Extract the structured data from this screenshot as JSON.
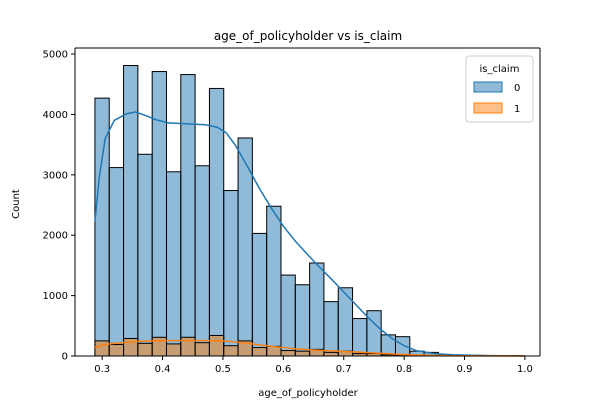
{
  "chart_data": {
    "type": "histogram",
    "title": "age_of_policyholder vs is_claim",
    "xlabel": "age_of_policyholder",
    "ylabel": "Count",
    "xlim": [
      0.255,
      1.025
    ],
    "ylim": [
      0,
      5100
    ],
    "xticks": [
      "0.3",
      "0.4",
      "0.5",
      "0.6",
      "0.7",
      "0.8",
      "0.9",
      "1.0"
    ],
    "xtick_values": [
      0.3,
      0.4,
      0.5,
      0.6,
      0.7,
      0.8,
      0.9,
      1.0
    ],
    "yticks": [
      "0",
      "1000",
      "2000",
      "3000",
      "4000",
      "5000"
    ],
    "ytick_values": [
      0,
      1000,
      2000,
      3000,
      4000,
      5000
    ],
    "bin_edges": [
      0.288,
      0.3117,
      0.3354,
      0.3591,
      0.3828,
      0.4065,
      0.4302,
      0.4539,
      0.4776,
      0.5013,
      0.525,
      0.5487,
      0.5724,
      0.5961,
      0.6198,
      0.6435,
      0.6672,
      0.6909,
      0.7146,
      0.7383,
      0.762,
      0.7857,
      0.8094,
      0.8331,
      0.8568,
      0.8805,
      0.9042,
      0.9279,
      0.9516,
      0.9753,
      0.999
    ],
    "series": [
      {
        "name": "0",
        "color": "#1f77b4",
        "fill": "rgba(31,119,180,0.5)",
        "counts": [
          4270,
          3120,
          4810,
          3340,
          4710,
          3050,
          4660,
          3150,
          4430,
          2740,
          3610,
          2030,
          2480,
          1340,
          1180,
          1540,
          900,
          1130,
          620,
          750,
          350,
          320,
          80,
          60,
          20,
          15,
          10,
          5,
          5,
          3
        ],
        "kde": [
          [
            0.288,
            2220
          ],
          [
            0.295,
            2950
          ],
          [
            0.305,
            3600
          ],
          [
            0.32,
            3900
          ],
          [
            0.34,
            4010
          ],
          [
            0.355,
            4040
          ],
          [
            0.37,
            3990
          ],
          [
            0.39,
            3910
          ],
          [
            0.41,
            3860
          ],
          [
            0.43,
            3850
          ],
          [
            0.45,
            3840
          ],
          [
            0.47,
            3830
          ],
          [
            0.49,
            3790
          ],
          [
            0.505,
            3700
          ],
          [
            0.52,
            3500
          ],
          [
            0.54,
            3150
          ],
          [
            0.56,
            2780
          ],
          [
            0.58,
            2450
          ],
          [
            0.6,
            2150
          ],
          [
            0.62,
            1900
          ],
          [
            0.64,
            1680
          ],
          [
            0.66,
            1470
          ],
          [
            0.68,
            1270
          ],
          [
            0.7,
            1060
          ],
          [
            0.72,
            850
          ],
          [
            0.74,
            640
          ],
          [
            0.76,
            450
          ],
          [
            0.78,
            290
          ],
          [
            0.8,
            170
          ],
          [
            0.82,
            90
          ],
          [
            0.85,
            40
          ],
          [
            0.88,
            20
          ],
          [
            0.92,
            10
          ],
          [
            0.96,
            5
          ],
          [
            0.999,
            3
          ]
        ]
      },
      {
        "name": "1",
        "color": "#ff7f0e",
        "fill": "rgba(255,127,14,0.5)",
        "counts": [
          250,
          190,
          290,
          210,
          310,
          200,
          310,
          220,
          340,
          170,
          250,
          140,
          160,
          90,
          80,
          110,
          60,
          80,
          40,
          40,
          20,
          20,
          5,
          3,
          2,
          1,
          1,
          0,
          0,
          0
        ],
        "kde": [
          [
            0.288,
            140
          ],
          [
            0.3,
            180
          ],
          [
            0.32,
            210
          ],
          [
            0.35,
            235
          ],
          [
            0.38,
            250
          ],
          [
            0.41,
            255
          ],
          [
            0.44,
            255
          ],
          [
            0.47,
            255
          ],
          [
            0.5,
            250
          ],
          [
            0.53,
            225
          ],
          [
            0.56,
            185
          ],
          [
            0.59,
            150
          ],
          [
            0.62,
            120
          ],
          [
            0.65,
            100
          ],
          [
            0.68,
            85
          ],
          [
            0.71,
            70
          ],
          [
            0.74,
            55
          ],
          [
            0.77,
            40
          ],
          [
            0.8,
            25
          ],
          [
            0.84,
            12
          ],
          [
            0.88,
            5
          ],
          [
            0.93,
            2
          ],
          [
            0.999,
            1
          ]
        ]
      }
    ],
    "legend": {
      "title": "is_claim",
      "placement": "top-right",
      "entries": [
        "0",
        "1"
      ]
    },
    "grid": false
  }
}
